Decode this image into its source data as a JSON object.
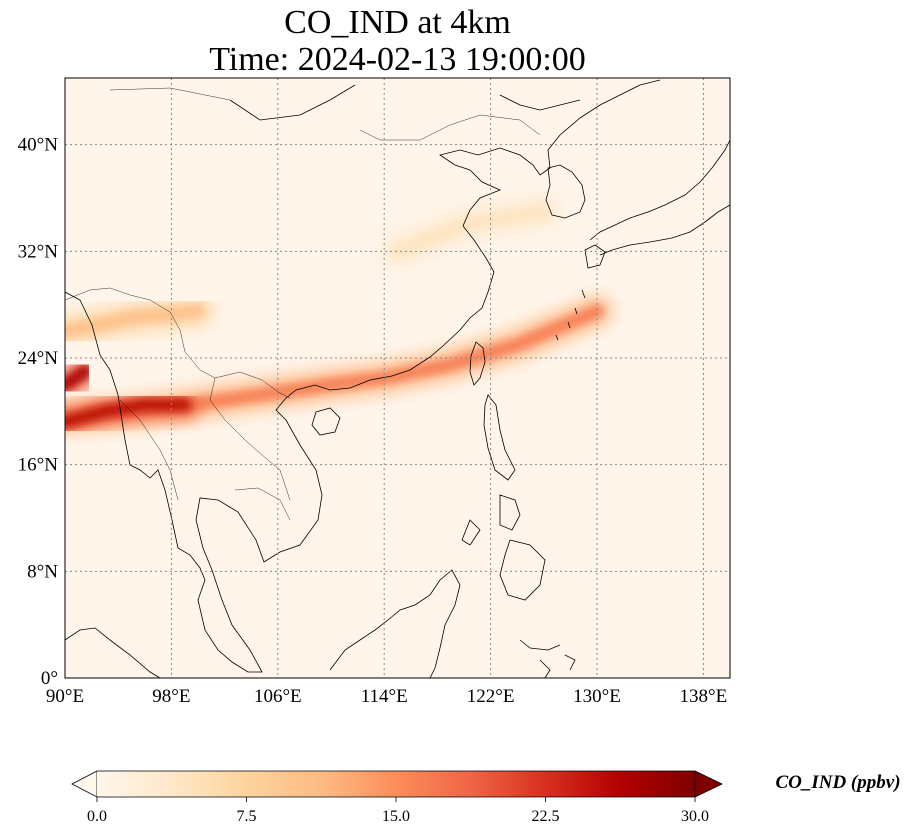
{
  "title": {
    "line1": "CO_IND at 4km",
    "line2": "Time: 2024-02-13 19:00:00"
  },
  "map": {
    "variable": "CO_IND",
    "units": "ppbv",
    "lon_range": [
      90,
      140
    ],
    "lat_range": [
      0,
      45
    ],
    "lon_ticks": [
      "90°E",
      "98°E",
      "106°E",
      "114°E",
      "122°E",
      "130°E",
      "138°E"
    ],
    "lon_tick_values": [
      90,
      98,
      106,
      114,
      122,
      130,
      138
    ],
    "lat_ticks": [
      "0°",
      "8°N",
      "16°N",
      "24°N",
      "32°N",
      "40°N"
    ],
    "lat_tick_values": [
      0,
      8,
      16,
      24,
      32,
      40
    ],
    "gridlines": "dotted",
    "colormap": "OrRd",
    "plumes": [
      {
        "name": "south-china-plume",
        "path": [
          [
            90,
            19.5
          ],
          [
            96,
            20
          ],
          [
            103,
            21
          ],
          [
            110,
            22
          ],
          [
            114,
            22.5
          ],
          [
            119,
            23.5
          ],
          [
            124,
            25
          ],
          [
            130,
            27.5
          ]
        ],
        "strength": 0.55
      },
      {
        "name": "myanmar-plume",
        "path": [
          [
            90,
            19.2
          ],
          [
            93,
            20
          ],
          [
            96,
            20.5
          ],
          [
            99,
            20.5
          ]
        ],
        "strength": 0.85
      },
      {
        "name": "bay-of-bengal-plume",
        "path": [
          [
            90,
            22
          ],
          [
            91.5,
            23
          ]
        ],
        "strength": 0.9
      },
      {
        "name": "himalaya-plume",
        "path": [
          [
            90,
            26
          ],
          [
            95,
            27
          ],
          [
            100,
            27.5
          ]
        ],
        "strength": 0.35
      },
      {
        "name": "east-china-plume",
        "path": [
          [
            115,
            32
          ],
          [
            120,
            34
          ],
          [
            126,
            35
          ]
        ],
        "strength": 0.15
      }
    ]
  },
  "colorbar": {
    "label": "CO_IND (ppbv)",
    "min": 0.0,
    "max": 30.0,
    "ticks": [
      "0.0",
      "7.5",
      "15.0",
      "22.5",
      "30.0"
    ],
    "tick_values": [
      0,
      7.5,
      15,
      22.5,
      30
    ],
    "extend": "both",
    "colors": [
      "#fff7ec",
      "#fee8c8",
      "#fdd49e",
      "#fdbb84",
      "#fc8d59",
      "#ef6548",
      "#d7301f",
      "#b30000",
      "#7f0000"
    ]
  }
}
